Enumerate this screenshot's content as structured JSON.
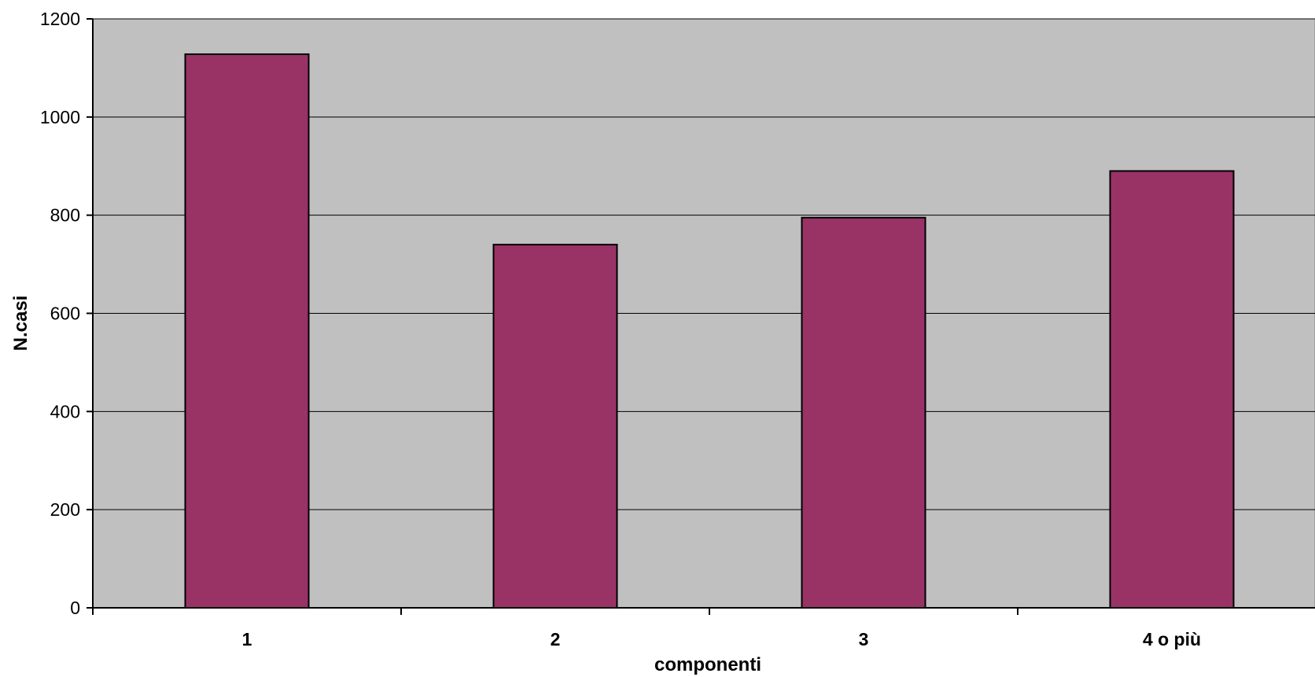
{
  "chart_data": {
    "type": "bar",
    "categories": [
      "1",
      "2",
      "3",
      "4 o più"
    ],
    "values": [
      1128,
      740,
      795,
      890
    ],
    "title": "",
    "xlabel": "componenti",
    "ylabel": "N.casi",
    "ylim": [
      0,
      1200
    ],
    "yticks": [
      0,
      200,
      400,
      600,
      800,
      1000,
      1200
    ],
    "grid": true,
    "legend": "none",
    "colors": {
      "bar": "#993366",
      "plot_background": "#c0c0c0",
      "page_background": "#ffffff",
      "gridline": "#000000"
    }
  }
}
